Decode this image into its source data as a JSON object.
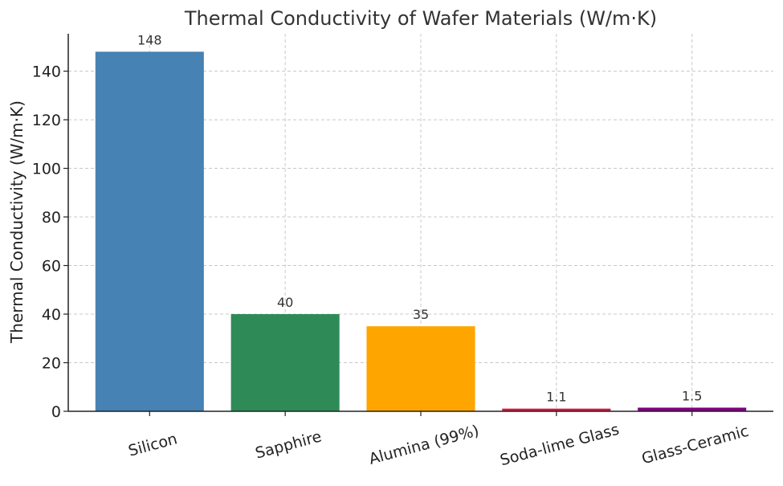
{
  "chart_data": {
    "type": "bar",
    "title": "Thermal Conductivity of Wafer Materials (W/m·K)",
    "xlabel": "",
    "ylabel": "Thermal Conductivity (W/m·K)",
    "categories": [
      "Silicon",
      "Sapphire",
      "Alumina (99%)",
      "Soda-lime Glass",
      "Glass-Ceramic"
    ],
    "values": [
      148,
      40,
      35,
      1.1,
      1.5
    ],
    "data_labels": [
      "148",
      "40",
      "35",
      "1.1",
      "1.5"
    ],
    "colors": [
      "#4682B4",
      "#2E8B57",
      "#FFA500",
      "#DC143C",
      "#800080"
    ],
    "ylim": [
      0,
      155.4
    ],
    "yticks": [
      0,
      20,
      40,
      60,
      80,
      100,
      120,
      140
    ],
    "grid": true,
    "legend": "none"
  }
}
